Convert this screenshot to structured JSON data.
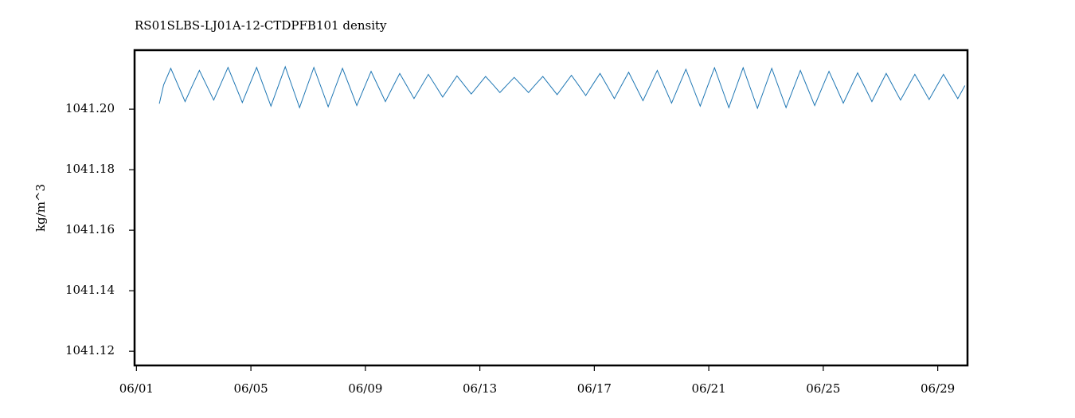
{
  "chart_data": {
    "type": "line",
    "title": "RS01SLBS-LJ01A-12-CTDPFB101 density",
    "ylabel": "kg/m^3",
    "xlim": [
      0.935,
      30.04
    ],
    "ylim": [
      1041.1153,
      1041.2195
    ],
    "xticks": [
      {
        "value": 1,
        "label": "06/01"
      },
      {
        "value": 5,
        "label": "06/05"
      },
      {
        "value": 9,
        "label": "06/09"
      },
      {
        "value": 13,
        "label": "06/13"
      },
      {
        "value": 17,
        "label": "06/17"
      },
      {
        "value": 21,
        "label": "06/21"
      },
      {
        "value": 25,
        "label": "06/25"
      },
      {
        "value": 29,
        "label": "06/29"
      }
    ],
    "yticks": [
      {
        "value": 1041.12,
        "label": "1041.12"
      },
      {
        "value": 1041.14,
        "label": "1041.14"
      },
      {
        "value": 1041.16,
        "label": "1041.16"
      },
      {
        "value": 1041.18,
        "label": "1041.18"
      },
      {
        "value": 1041.2,
        "label": "1041.20"
      }
    ],
    "grid": false,
    "series": [
      {
        "color": "#1f77b4",
        "x": [
          1.8,
          1.95,
          2.2,
          2.45,
          2.7,
          2.95,
          3.2,
          3.45,
          3.7,
          3.95,
          4.2,
          4.45,
          4.7,
          4.95,
          5.2,
          5.45,
          5.7,
          5.95,
          6.2,
          6.45,
          6.7,
          6.95,
          7.2,
          7.45,
          7.7,
          7.95,
          8.2,
          8.45,
          8.7,
          8.95,
          9.2,
          9.45,
          9.7,
          9.95,
          10.2,
          10.45,
          10.7,
          10.95,
          11.2,
          11.45,
          11.7,
          11.95,
          12.2,
          12.45,
          12.7,
          12.95,
          13.2,
          13.45,
          13.7,
          13.95,
          14.2,
          14.45,
          14.7,
          14.95,
          15.2,
          15.45,
          15.7,
          15.95,
          16.2,
          16.45,
          16.7,
          16.95,
          17.2,
          17.45,
          17.7,
          17.95,
          18.2,
          18.45,
          18.7,
          18.95,
          19.2,
          19.45,
          19.7,
          19.95,
          20.2,
          20.45,
          20.7,
          20.95,
          21.2,
          21.45,
          21.7,
          21.95,
          22.2,
          22.45,
          22.7,
          22.95,
          23.2,
          23.45,
          23.7,
          23.95,
          24.2,
          24.45,
          24.7,
          24.95,
          25.2,
          25.45,
          25.7,
          25.95,
          26.2,
          26.45,
          26.7,
          26.95,
          27.2,
          27.45,
          27.7,
          27.95,
          28.2,
          28.45,
          28.7,
          28.95,
          29.2,
          29.45,
          29.7,
          29.95
        ],
        "values": [
          1041.2018,
          1041.208,
          1041.2135,
          1041.208,
          1041.2025,
          1041.2077,
          1041.2128,
          1041.2079,
          1041.203,
          1041.2084,
          1041.2138,
          1041.208,
          1041.2022,
          1041.208,
          1041.2138,
          1041.2074,
          1041.201,
          1041.2075,
          1041.214,
          1041.2073,
          1041.2005,
          1041.2072,
          1041.2138,
          1041.2073,
          1041.2008,
          1041.2072,
          1041.2135,
          1041.2074,
          1041.2012,
          1041.2069,
          1041.2125,
          1041.2075,
          1041.2025,
          1041.2072,
          1041.2118,
          1041.2077,
          1041.2035,
          1041.2075,
          1041.2115,
          1041.2078,
          1041.204,
          1041.2075,
          1041.211,
          1041.208,
          1041.205,
          1041.2079,
          1041.2108,
          1041.2082,
          1041.2055,
          1041.208,
          1041.2105,
          1041.208,
          1041.2055,
          1041.2082,
          1041.2108,
          1041.2078,
          1041.2048,
          1041.208,
          1041.2112,
          1041.2079,
          1041.2045,
          1041.2082,
          1041.2118,
          1041.2077,
          1041.2035,
          1041.2079,
          1041.2122,
          1041.2075,
          1041.2028,
          1041.2078,
          1041.2128,
          1041.2074,
          1041.202,
          1041.2076,
          1041.2132,
          1041.2071,
          1041.201,
          1041.2074,
          1041.2137,
          1041.2071,
          1041.2005,
          1041.2071,
          1041.2137,
          1041.207,
          1041.2003,
          1041.2069,
          1041.2135,
          1041.207,
          1041.2005,
          1041.2067,
          1041.2128,
          1041.207,
          1041.2012,
          1041.2069,
          1041.2125,
          1041.2073,
          1041.202,
          1041.207,
          1041.212,
          1041.2073,
          1041.2025,
          1041.2072,
          1041.2118,
          1041.2074,
          1041.203,
          1041.2073,
          1041.2115,
          1041.2074,
          1041.2032,
          1041.2074,
          1041.2115,
          1041.2075,
          1041.2035,
          1041.2078
        ]
      }
    ]
  }
}
